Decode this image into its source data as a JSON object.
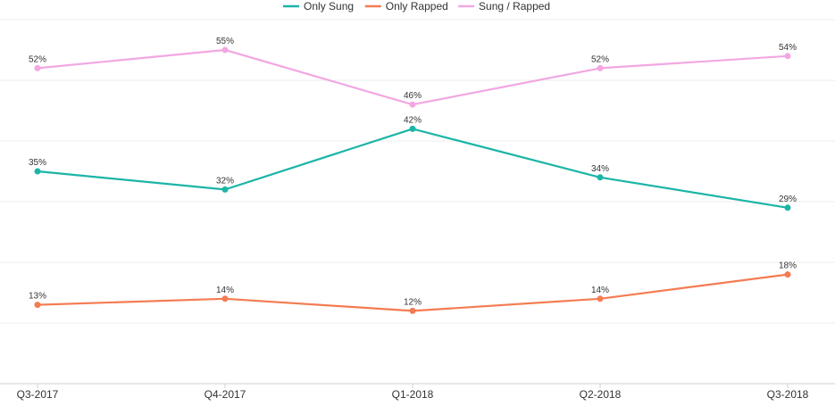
{
  "chart_data": {
    "type": "line",
    "categories": [
      "Q3-2017",
      "Q4-2017",
      "Q1-2018",
      "Q2-2018",
      "Q3-2018"
    ],
    "series": [
      {
        "name": "Only Sung",
        "color": "#1bb5a6",
        "values": [
          35,
          32,
          42,
          34,
          29
        ]
      },
      {
        "name": "Only Rapped",
        "color": "#f47c52",
        "values": [
          13,
          14,
          12,
          14,
          18
        ]
      },
      {
        "name": "Sung / Rapped",
        "color": "#f2a7e2",
        "values": [
          52,
          55,
          46,
          52,
          54
        ]
      }
    ],
    "data_label_suffix": "%",
    "ylim": [
      0,
      60
    ],
    "grid": true,
    "legend_position": "top-center",
    "title": "",
    "xlabel": "",
    "ylabel": ""
  }
}
